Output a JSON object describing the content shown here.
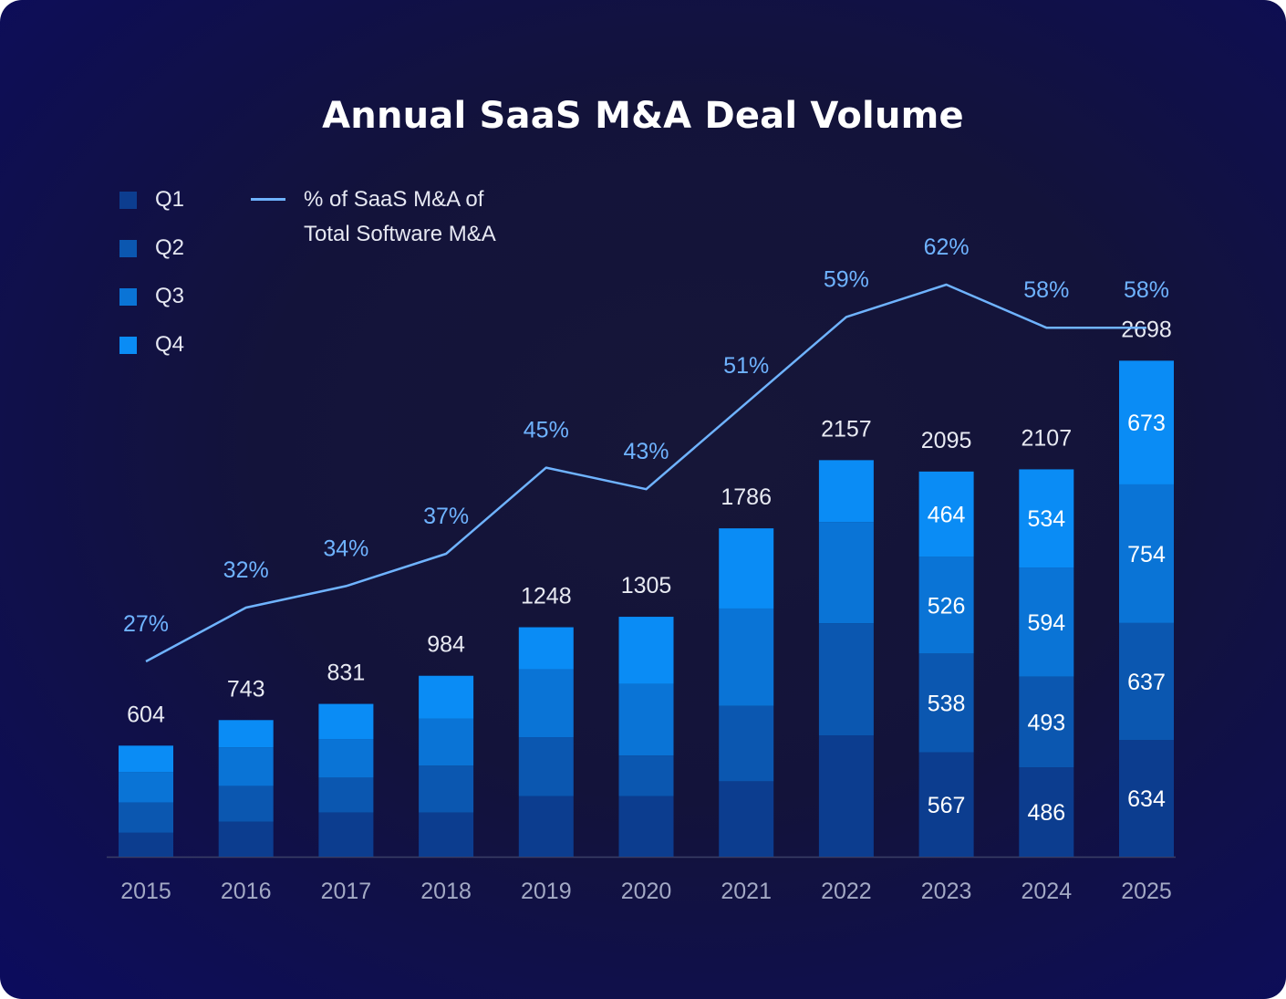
{
  "colors": {
    "q1": "#0c3d8f",
    "q2": "#0b57b0",
    "q3": "#0a74d6",
    "q4": "#0a8cf5",
    "line": "#6fb3ff",
    "axis_label": "#a3a9c4",
    "total_label": "#e8eaf2"
  },
  "chart_data": {
    "type": "bar",
    "title": "Annual SaaS M&A Deal Volume",
    "categories": [
      "2015",
      "2016",
      "2017",
      "2018",
      "2019",
      "2020",
      "2021",
      "2022",
      "2023",
      "2024",
      "2025"
    ],
    "stacked": true,
    "series": [
      {
        "name": "Q1",
        "values": [
          130,
          190,
          240,
          240,
          330,
          330,
          410,
          660,
          567,
          486,
          634
        ]
      },
      {
        "name": "Q2",
        "values": [
          165,
          195,
          190,
          255,
          320,
          220,
          410,
          610,
          538,
          493,
          637
        ]
      },
      {
        "name": "Q3",
        "values": [
          165,
          210,
          210,
          255,
          370,
          390,
          530,
          550,
          526,
          594,
          754
        ]
      },
      {
        "name": "Q4",
        "values": [
          144,
          148,
          191,
          234,
          228,
          365,
          436,
          337,
          464,
          534,
          673
        ]
      }
    ],
    "segment_labels_shown": [
      "2023",
      "2024",
      "2025"
    ],
    "totals": [
      604,
      743,
      831,
      984,
      1248,
      1305,
      1786,
      2157,
      2095,
      2107,
      2698
    ],
    "line_series": {
      "name": "% of SaaS M&A of Total Software M&A",
      "unit": "%",
      "values": [
        27,
        32,
        34,
        37,
        45,
        43,
        51,
        59,
        62,
        58,
        58
      ]
    },
    "legend": {
      "placement": "top-left",
      "bar_items": [
        "Q1",
        "Q2",
        "Q3",
        "Q4"
      ],
      "line_label_lines": [
        "% of SaaS M&A of",
        "Total Software M&A"
      ]
    },
    "grid": false
  }
}
